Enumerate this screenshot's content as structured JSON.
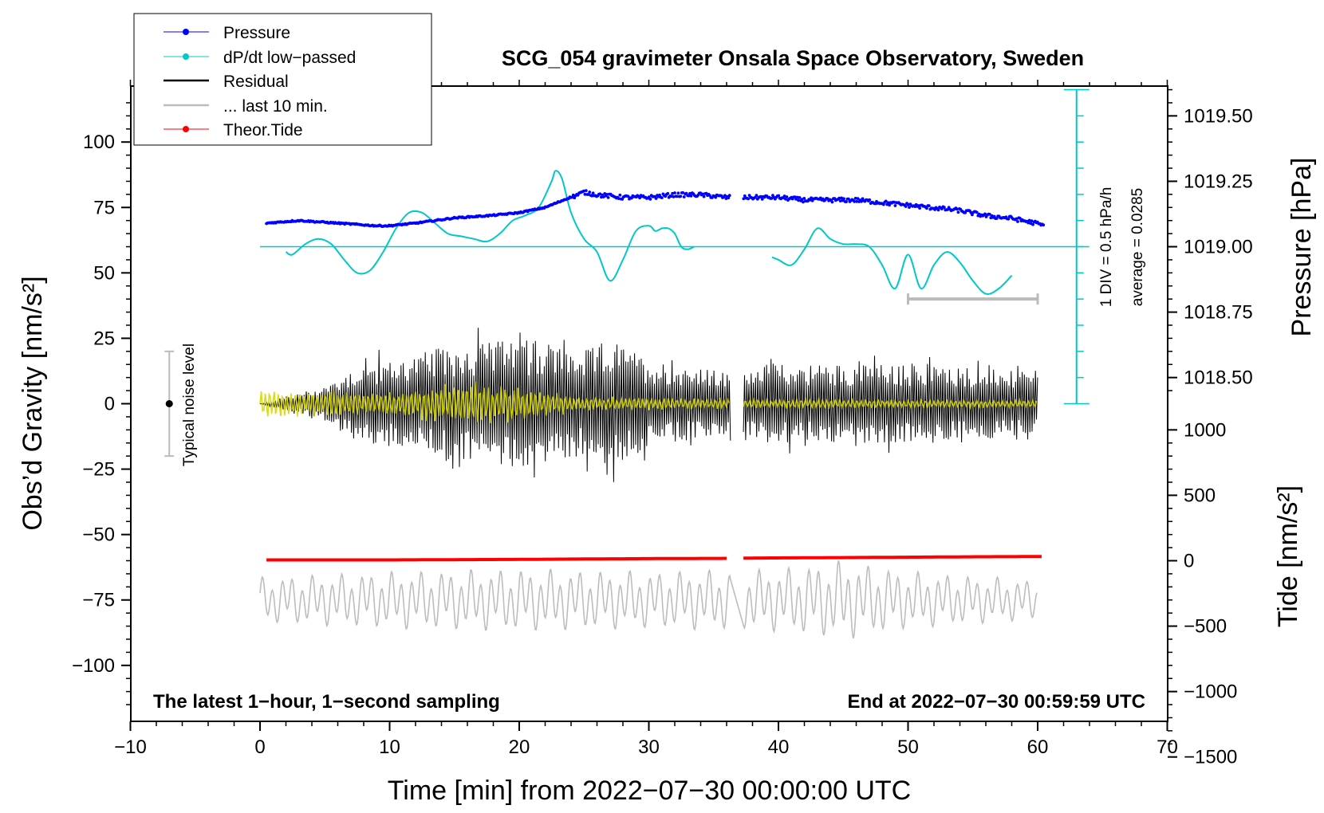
{
  "chart_data": {
    "type": "line",
    "title": "SCG_054 gravimeter Onsala Space Observatory, Sweden",
    "xlabel": "Time [min] from 2022−07−30 00:00:00 UTC",
    "ylabel_left": "Obs’d Gravity [nm/s²]",
    "ylabel_right_pressure": "Pressure [hPa]",
    "ylabel_right_tide": "Tide [nm/s²]",
    "footer_left": "The latest 1−hour, 1−second sampling",
    "footer_right": "End at 2022−07−30 00:59:59 UTC",
    "xlim": [
      -10,
      70
    ],
    "ylim": [
      -120,
      120
    ],
    "x_ticks": [
      -10,
      0,
      10,
      20,
      30,
      40,
      50,
      60,
      70
    ],
    "x_tick_labels": [
      "−10",
      "0",
      "10",
      "20",
      "30",
      "40",
      "50",
      "60",
      "70"
    ],
    "y_ticks": [
      -100,
      -75,
      -50,
      -25,
      0,
      25,
      50,
      75,
      100
    ],
    "y_tick_labels": [
      "−100",
      "−75",
      "−50",
      "−25",
      "0",
      "25",
      "50",
      "75",
      "100"
    ],
    "pressure_axis": {
      "ticks": [
        1018.5,
        1018.75,
        1019.0,
        1019.25,
        1019.5
      ],
      "tick_labels": [
        "1018.50",
        "1018.75",
        "1019.00",
        "1019.25",
        "1019.50"
      ],
      "gravity_at_1019": 60,
      "gravity_per_hPa": 100
    },
    "tide_axis": {
      "ticks": [
        1000,
        500,
        0,
        -500,
        -1000,
        -1500
      ],
      "tick_labels": [
        "1000",
        "500",
        "0",
        "−500",
        "−1000",
        "−1500"
      ],
      "gravity_at_zero": -60,
      "gravity_per_unit": 0.05
    },
    "dpdt_scale": {
      "label_div": "1 DIV = 0.5 hPa/h",
      "label_avg": "average = 0.0285",
      "x": 63,
      "y_range": [
        0,
        120
      ],
      "divisions": 12,
      "baseline": 60
    },
    "noise_bar": {
      "label": "Typical noise level",
      "x": -7,
      "center": 0,
      "half_range": 20
    },
    "ten_min_marker": {
      "x_range": [
        50,
        60
      ],
      "y": 40
    },
    "gap": [
      36.3,
      37.3
    ],
    "legend": [
      {
        "label": "Pressure",
        "color": "#0000ff",
        "marker": true
      },
      {
        "label": "dP/dt low−passed",
        "color": "#00c8c8",
        "marker": true
      },
      {
        "label": "Residual",
        "color": "#000000",
        "marker": false
      },
      {
        "label": "... last 10 min.",
        "color": "#bdbdbd",
        "marker": false
      },
      {
        "label": "Theor.Tide",
        "color": "#ff0000",
        "marker": true
      }
    ],
    "series": [
      {
        "name": "Pressure",
        "color": "#0000ff",
        "unit": "hPa",
        "x": [
          0.5,
          3,
          6,
          9,
          10,
          12,
          15,
          18,
          20,
          22,
          24,
          25,
          26,
          28,
          30,
          32,
          34,
          36,
          38,
          40,
          42,
          44,
          46,
          48,
          50,
          52,
          54,
          56,
          58,
          60,
          60.5
        ],
        "values": [
          1019.09,
          1019.1,
          1019.09,
          1019.08,
          1019.08,
          1019.09,
          1019.11,
          1019.12,
          1019.13,
          1019.15,
          1019.19,
          1019.21,
          1019.2,
          1019.19,
          1019.19,
          1019.2,
          1019.2,
          1019.19,
          1019.19,
          1019.19,
          1019.18,
          1019.18,
          1019.18,
          1019.17,
          1019.16,
          1019.15,
          1019.14,
          1019.12,
          1019.11,
          1019.09,
          1019.08
        ]
      },
      {
        "name": "dP/dt low−passed",
        "color": "#00c8c8",
        "unit": "gravity-axis units",
        "segments": [
          {
            "x": [
              2,
              2.5,
              3.5,
              4.5,
              5.5,
              6.5,
              7.5,
              8.5,
              9.5,
              10.5,
              11.5,
              12.5,
              13.5,
              14.5,
              15.5,
              16.5,
              17.5,
              18.5,
              19.5,
              20.5,
              21.5,
              22.5,
              22.8,
              23.3,
              24,
              25,
              26,
              27,
              28,
              29,
              30,
              30.5,
              31,
              31.5,
              32,
              32.5,
              33,
              33.5
            ],
            "values": [
              58,
              57,
              61,
              63,
              61,
              55,
              50,
              51,
              58,
              67,
              73,
              73,
              69,
              65,
              64,
              63,
              62,
              65,
              70,
              72,
              75,
              85,
              89,
              86,
              73,
              63,
              58,
              47,
              55,
              66,
              68,
              66,
              67,
              67,
              65,
              60,
              59,
              60
            ]
          },
          {
            "x": [
              39.5,
              40,
              41,
              42,
              43,
              44,
              45,
              46,
              47,
              48,
              49,
              50,
              51,
              52,
              53,
              54,
              55,
              56,
              57,
              58
            ],
            "values": [
              56,
              55,
              53,
              59,
              67,
              63,
              61,
              61,
              60,
              53,
              44,
              57,
              44,
              53,
              58,
              54,
              47,
              42,
              44,
              49
            ]
          }
        ]
      },
      {
        "name": "Residual",
        "color": "#000000",
        "unit": "nm/s²",
        "envelope_x": [
          0,
          5,
          7.5,
          10,
          15,
          20,
          25,
          27,
          30,
          36,
          37.5,
          45,
          50,
          55,
          60
        ],
        "envelope_amplitude": [
          32,
          36,
          50,
          42,
          40,
          34,
          24,
          28,
          18,
          12,
          18,
          16,
          15,
          14,
          12
        ]
      },
      {
        "name": "Residual filtered",
        "color": "#d6d600",
        "unit": "nm/s²",
        "envelope_x": [
          0,
          10,
          16,
          25,
          36,
          37.5,
          60
        ],
        "envelope_amplitude": [
          6,
          5,
          10,
          3,
          2,
          2,
          1.5
        ]
      },
      {
        "name": "... last 10 min.",
        "color": "#bdbdbd",
        "unit": "nm/s²",
        "center": -75,
        "envelope_x": [
          0,
          10,
          20,
          30,
          40,
          45,
          50,
          60
        ],
        "envelope_amplitude": [
          8,
          10,
          11,
          10,
          11,
          14,
          10,
          7
        ]
      },
      {
        "name": "Theor.Tide",
        "color": "#ff0000",
        "unit": "nm/s²",
        "x": [
          0.5,
          10,
          20,
          30,
          36.3,
          37.3,
          45,
          55,
          60.5
        ],
        "values": [
          6,
          6,
          10,
          16,
          18,
          20,
          24,
          30,
          32
        ]
      }
    ]
  }
}
